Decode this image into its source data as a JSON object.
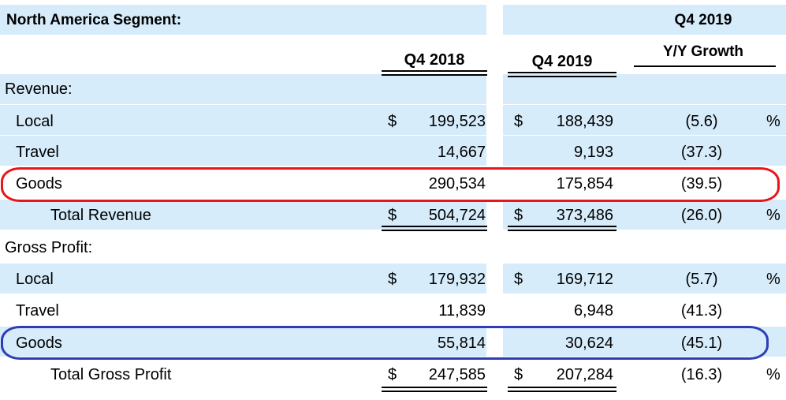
{
  "title": "North America Segment:",
  "headers": {
    "q4_2019_top": "Q4 2019",
    "yy_growth": "Y/Y Growth",
    "q4_2018": "Q4 2018",
    "q4_2019": "Q4 2019"
  },
  "sections": {
    "revenue": "Revenue:",
    "gross_profit": "Gross Profit:"
  },
  "rows": [
    {
      "label": "Local",
      "cur18": "$",
      "v18": "199,523",
      "cur19": "$",
      "v19": "188,439",
      "growth": "(5.6)",
      "pct": "%"
    },
    {
      "label": "Travel",
      "cur18": "",
      "v18": "14,667",
      "cur19": "",
      "v19": "9,193",
      "growth": "(37.3)",
      "pct": ""
    },
    {
      "label": "Goods",
      "cur18": "",
      "v18": "290,534",
      "cur19": "",
      "v19": "175,854",
      "growth": "(39.5)",
      "pct": ""
    },
    {
      "label": "Total Revenue",
      "cur18": "$",
      "v18": "504,724",
      "cur19": "$",
      "v19": "373,486",
      "growth": "(26.0)",
      "pct": "%"
    },
    {
      "label": "Local",
      "cur18": "$",
      "v18": "179,932",
      "cur19": "$",
      "v19": "169,712",
      "growth": "(5.7)",
      "pct": "%"
    },
    {
      "label": "Travel",
      "cur18": "",
      "v18": "11,839",
      "cur19": "",
      "v19": "6,948",
      "growth": "(41.3)",
      "pct": ""
    },
    {
      "label": "Goods",
      "cur18": "",
      "v18": "55,814",
      "cur19": "",
      "v19": "30,624",
      "growth": "(45.1)",
      "pct": ""
    },
    {
      "label": "Total Gross Profit",
      "cur18": "$",
      "v18": "247,585",
      "cur19": "$",
      "v19": "207,284",
      "growth": "(16.3)",
      "pct": "%"
    }
  ],
  "highlights": {
    "revenue_goods": "#e8151b",
    "gross_profit_goods": "#2e3db5"
  },
  "colors": {
    "band": "#d6ecfb"
  }
}
